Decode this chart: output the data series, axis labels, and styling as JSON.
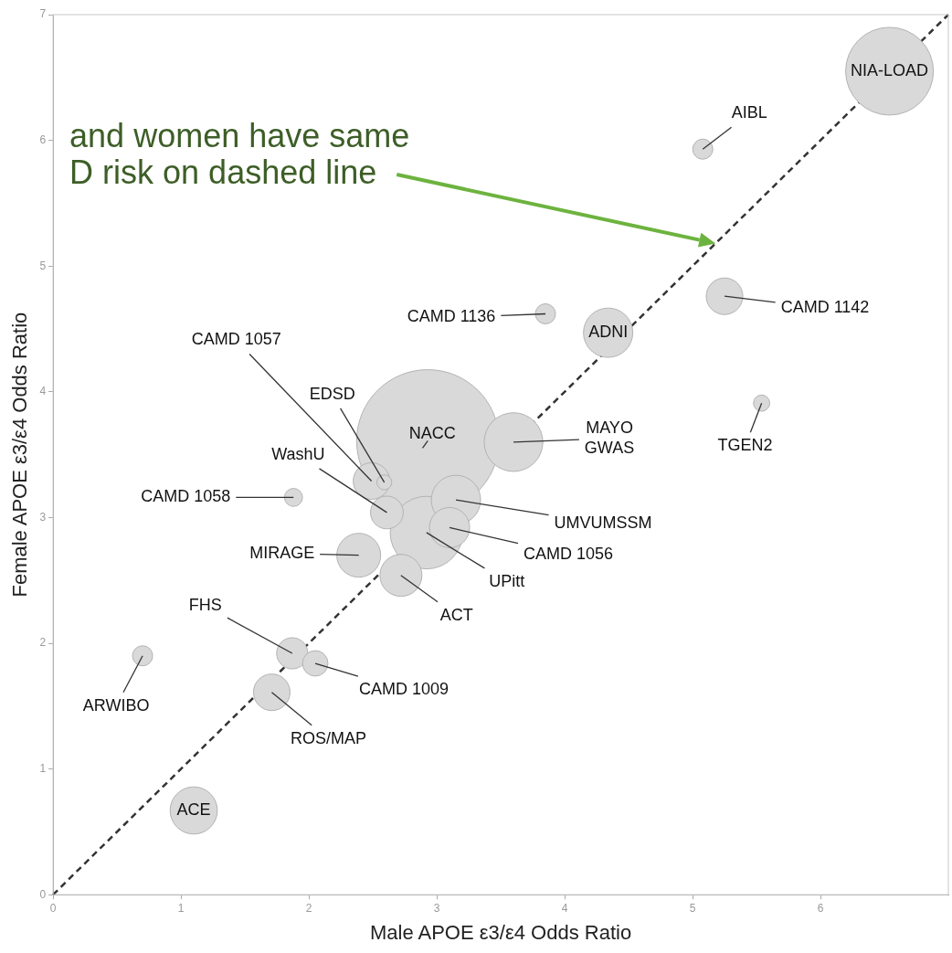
{
  "chart_data": {
    "type": "bubble",
    "xlabel": "Male APOE ε3/ε4 Odds Ratio",
    "ylabel": "Female APOE ε3/ε4 Odds Ratio",
    "xlim": [
      0,
      7
    ],
    "ylim": [
      0,
      7
    ],
    "xticks": [
      0,
      1,
      2,
      3,
      4,
      5,
      6
    ],
    "yticks": [
      0,
      1,
      2,
      3,
      4,
      5,
      6,
      7
    ],
    "grid": false,
    "legend": false,
    "annotations": [
      "and women have same D risk on dashed line"
    ],
    "series": [
      {
        "name": "NIA-LOAD",
        "color": "#d9d9d9",
        "x": [
          6.54
        ],
        "values": [
          6.55
        ],
        "sizes": [
          0.38
        ]
      },
      {
        "name": "AIBL",
        "color": "#d9d9d9",
        "x": [
          5.08
        ],
        "values": [
          5.93
        ],
        "sizes": [
          0.02
        ]
      },
      {
        "name": "CAMD 1136",
        "color": "#d9d9d9",
        "x": [
          3.85
        ],
        "values": [
          4.62
        ],
        "sizes": [
          0.02
        ]
      },
      {
        "name": "ADNI",
        "color": "#d9d9d9",
        "x": [
          4.34
        ],
        "values": [
          4.47
        ],
        "sizes": [
          0.12
        ]
      },
      {
        "name": "CAMD 1142",
        "color": "#d9d9d9",
        "x": [
          5.25
        ],
        "values": [
          4.76
        ],
        "sizes": [
          0.066
        ]
      },
      {
        "name": "TGEN2",
        "color": "#d9d9d9",
        "x": [
          5.54
        ],
        "values": [
          3.91
        ],
        "sizes": [
          0.013
        ]
      },
      {
        "name": "NACC",
        "color": "#d9d9d9",
        "x": [
          2.93
        ],
        "values": [
          3.61
        ],
        "sizes": [
          1
        ]
      },
      {
        "name": "MAYO GWAS",
        "color": "#d9d9d9",
        "x": [
          3.6
        ],
        "values": [
          3.6
        ],
        "sizes": [
          0.17
        ]
      },
      {
        "name": "CAMD 1057",
        "color": "#d9d9d9",
        "x": [
          2.49
        ],
        "values": [
          3.29
        ],
        "sizes": [
          0.066
        ]
      },
      {
        "name": "EDSD",
        "color": "#d9d9d9",
        "x": [
          2.59
        ],
        "values": [
          3.28
        ],
        "sizes": [
          0.011
        ]
      },
      {
        "name": "WashU",
        "color": "#d9d9d9",
        "x": [
          2.61
        ],
        "values": [
          3.04
        ],
        "sizes": [
          0.053
        ]
      },
      {
        "name": "CAMD 1058",
        "color": "#d9d9d9",
        "x": [
          1.88
        ],
        "values": [
          3.16
        ],
        "sizes": [
          0.016
        ]
      },
      {
        "name": "UPitt",
        "color": "#d9d9d9",
        "x": [
          2.92
        ],
        "values": [
          2.88
        ],
        "sizes": [
          0.26
        ]
      },
      {
        "name": "UMVUMSSM",
        "color": "#d9d9d9",
        "x": [
          3.15
        ],
        "values": [
          3.14
        ],
        "sizes": [
          0.12
        ]
      },
      {
        "name": "CAMD 1056",
        "color": "#d9d9d9",
        "x": [
          3.1
        ],
        "values": [
          2.92
        ],
        "sizes": [
          0.08
        ]
      },
      {
        "name": "MIRAGE",
        "color": "#d9d9d9",
        "x": [
          2.39
        ],
        "values": [
          2.7
        ],
        "sizes": [
          0.095
        ]
      },
      {
        "name": "ACT",
        "color": "#d9d9d9",
        "x": [
          2.72
        ],
        "values": [
          2.54
        ],
        "sizes": [
          0.087
        ]
      },
      {
        "name": "FHS",
        "color": "#d9d9d9",
        "x": [
          1.87
        ],
        "values": [
          1.92
        ],
        "sizes": [
          0.048
        ]
      },
      {
        "name": "CAMD 1009",
        "color": "#d9d9d9",
        "x": [
          2.05
        ],
        "values": [
          1.84
        ],
        "sizes": [
          0.032
        ]
      },
      {
        "name": "ROS/MAP",
        "color": "#d9d9d9",
        "x": [
          1.71
        ],
        "values": [
          1.61
        ],
        "sizes": [
          0.066
        ]
      },
      {
        "name": "ARWIBO",
        "color": "#d9d9d9",
        "x": [
          0.7
        ],
        "values": [
          1.9
        ],
        "sizes": [
          0.02
        ]
      },
      {
        "name": "ACE",
        "color": "#d9d9d9",
        "x": [
          1.1
        ],
        "values": [
          0.67
        ],
        "sizes": [
          0.11
        ]
      },
      {
        "type": "line",
        "color": "#333333",
        "line_style": "dashed",
        "x": [
          0,
          7
        ],
        "values": [
          0,
          7
        ]
      }
    ]
  }
}
